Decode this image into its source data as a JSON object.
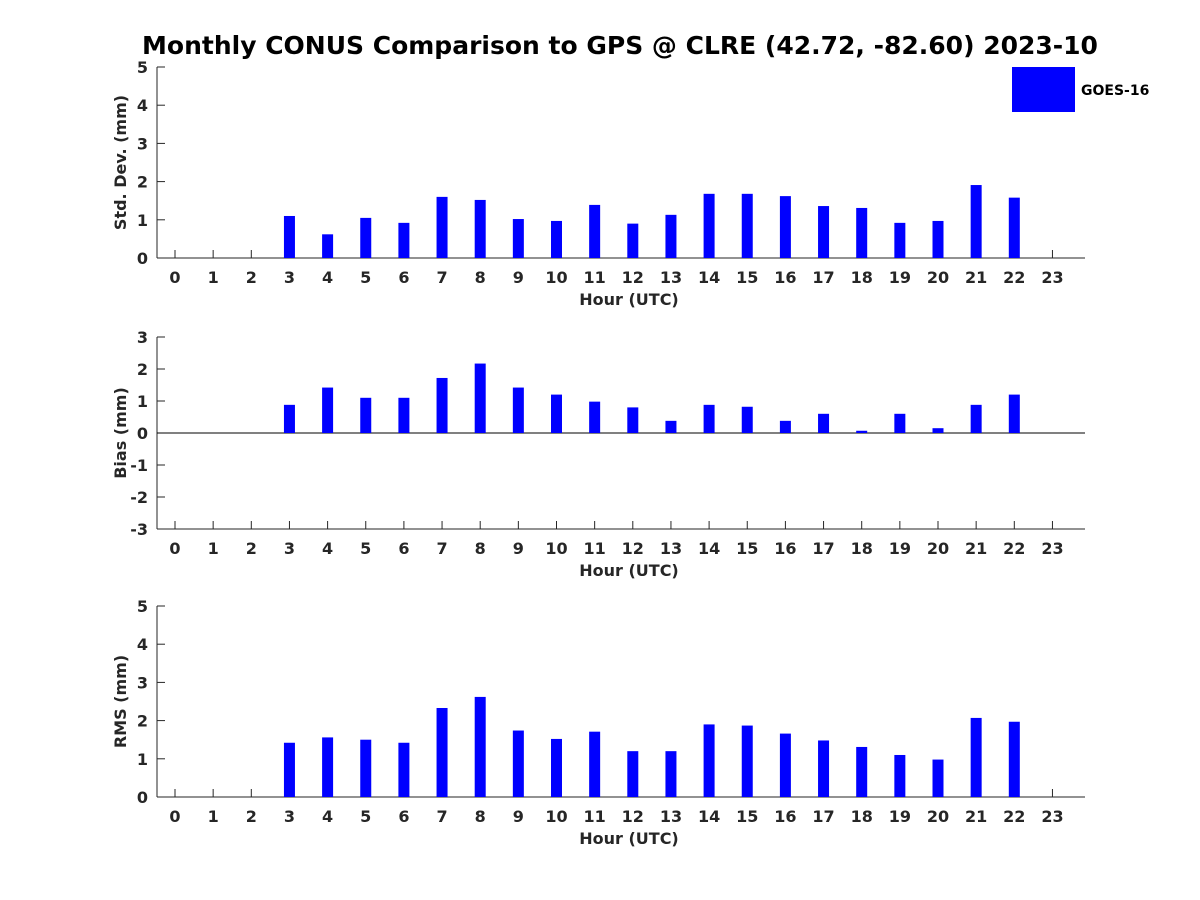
{
  "title": "Monthly CONUS Comparison to GPS @ CLRE (42.72, -82.60) 2023-10",
  "legend": {
    "entry": "GOES-16",
    "color": "#0000ff",
    "placement": "top-right"
  },
  "chart_data": [
    {
      "type": "bar",
      "name": "std-dev",
      "xlabel": "Hour (UTC)",
      "ylabel": "Std. Dev. (mm)",
      "ylim": [
        0,
        5
      ],
      "yticks": [
        0,
        1,
        2,
        3,
        4,
        5
      ],
      "categories": [
        "0",
        "1",
        "2",
        "3",
        "4",
        "5",
        "6",
        "7",
        "8",
        "9",
        "10",
        "11",
        "12",
        "13",
        "14",
        "15",
        "16",
        "17",
        "18",
        "19",
        "20",
        "21",
        "22",
        "23"
      ],
      "series": [
        {
          "name": "GOES-16",
          "color": "#0000ff",
          "values": [
            null,
            null,
            null,
            1.1,
            0.62,
            1.05,
            0.92,
            1.6,
            1.52,
            1.02,
            0.97,
            1.39,
            0.9,
            1.13,
            1.68,
            1.68,
            1.62,
            1.36,
            1.31,
            0.92,
            0.97,
            1.91,
            1.58,
            null
          ]
        }
      ]
    },
    {
      "type": "bar",
      "name": "bias",
      "xlabel": "Hour (UTC)",
      "ylabel": "Bias (mm)",
      "ylim": [
        -3,
        3
      ],
      "yticks": [
        -3,
        -2,
        -1,
        0,
        1,
        2,
        3
      ],
      "zero_line": true,
      "categories": [
        "0",
        "1",
        "2",
        "3",
        "4",
        "5",
        "6",
        "7",
        "8",
        "9",
        "10",
        "11",
        "12",
        "13",
        "14",
        "15",
        "16",
        "17",
        "18",
        "19",
        "20",
        "21",
        "22",
        "23"
      ],
      "series": [
        {
          "name": "GOES-16",
          "color": "#0000ff",
          "values": [
            null,
            null,
            null,
            0.88,
            1.42,
            1.1,
            1.1,
            1.72,
            2.17,
            1.42,
            1.2,
            0.98,
            0.8,
            0.38,
            0.88,
            0.82,
            0.38,
            0.6,
            0.07,
            0.6,
            0.15,
            0.88,
            1.2,
            null
          ]
        }
      ]
    },
    {
      "type": "bar",
      "name": "rms",
      "xlabel": "Hour (UTC)",
      "ylabel": "RMS (mm)",
      "ylim": [
        0,
        5
      ],
      "yticks": [
        0,
        1,
        2,
        3,
        4,
        5
      ],
      "categories": [
        "0",
        "1",
        "2",
        "3",
        "4",
        "5",
        "6",
        "7",
        "8",
        "9",
        "10",
        "11",
        "12",
        "13",
        "14",
        "15",
        "16",
        "17",
        "18",
        "19",
        "20",
        "21",
        "22",
        "23"
      ],
      "series": [
        {
          "name": "GOES-16",
          "color": "#0000ff",
          "values": [
            null,
            null,
            null,
            1.42,
            1.56,
            1.5,
            1.42,
            2.33,
            2.62,
            1.74,
            1.52,
            1.71,
            1.2,
            1.2,
            1.9,
            1.87,
            1.66,
            1.48,
            1.31,
            1.1,
            0.98,
            2.07,
            1.97,
            null
          ]
        }
      ]
    }
  ]
}
